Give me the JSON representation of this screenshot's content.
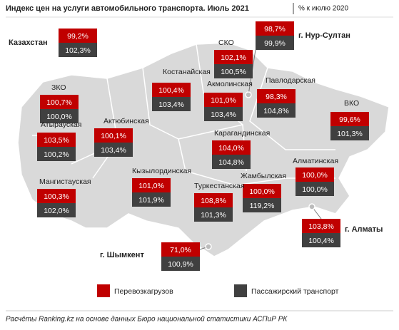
{
  "header": {
    "title": "Индекс цен на услуги автомобильного транспорта. Июль 2021",
    "subtitle": "% к июлю 2020"
  },
  "regions": [
    {
      "name": "Казахстан",
      "freight": "99,2%",
      "passenger": "102,3%"
    },
    {
      "name": "г. Нур-Султан",
      "freight": "98,7%",
      "passenger": "99,9%"
    },
    {
      "name": "СКО",
      "freight": "102,1%",
      "passenger": "100,5%"
    },
    {
      "name": "Костанайская",
      "freight": "100,4%",
      "passenger": "103,4%"
    },
    {
      "name": "Акмолинская",
      "freight": "101,0%",
      "passenger": "103,4%"
    },
    {
      "name": "Павлодарская",
      "freight": "98,3%",
      "passenger": "104,8%"
    },
    {
      "name": "ЗКО",
      "freight": "100,7%",
      "passenger": "100,0%"
    },
    {
      "name": "ВКО",
      "freight": "99,6%",
      "passenger": "101,3%"
    },
    {
      "name": "Атырауская",
      "freight": "103,5%",
      "passenger": "100,2%"
    },
    {
      "name": "Актюбинская",
      "freight": "100,1%",
      "passenger": "103,4%"
    },
    {
      "name": "Карагандинская",
      "freight": "104,0%",
      "passenger": "104,8%"
    },
    {
      "name": "Алматинская",
      "freight": "100,0%",
      "passenger": "100,0%"
    },
    {
      "name": "Мангистауская",
      "freight": "100,3%",
      "passenger": "102,0%"
    },
    {
      "name": "Кызылординская",
      "freight": "101,0%",
      "passenger": "101,9%"
    },
    {
      "name": "Жамбылская",
      "freight": "100,0%",
      "passenger": "119,2%"
    },
    {
      "name": "Туркестанская",
      "freight": "108,8%",
      "passenger": "101,3%"
    },
    {
      "name": "г. Алматы",
      "freight": "103,8%",
      "passenger": "100,4%"
    },
    {
      "name": "г. Шымкент",
      "freight": "71,0%",
      "passenger": "100,9%"
    }
  ],
  "legend": {
    "freight": "Перевозкагрузов",
    "passenger": "Пассажирский транспорт"
  },
  "source": "Расчёты Ranking.kz на основе данных Бюро национальной статистики АСПиР РК"
}
